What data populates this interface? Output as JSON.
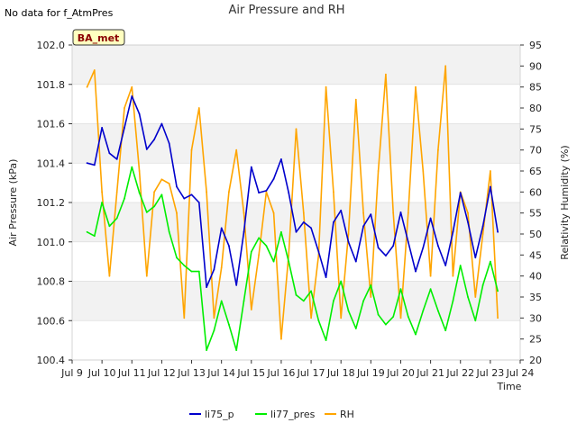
{
  "chart_data": {
    "type": "line",
    "title": "Air Pressure and RH",
    "note": "No data for f_AtmPres",
    "badge": "BA_met",
    "xlabel": "Time",
    "ylabel_left": "Air Pressure (kPa)",
    "ylabel_right": "Relativity Humidity (%)",
    "x_ticks": [
      "Jul 9",
      "Jul 10",
      "Jul 11",
      "Jul 12",
      "Jul 13",
      "Jul 14",
      "Jul 15",
      "Jul 16",
      "Jul 17",
      "Jul 18",
      "Jul 19",
      "Jul 20",
      "Jul 21",
      "Jul 22",
      "Jul 23",
      "Jul 24"
    ],
    "xlim": [
      "Jul 9",
      "Jul 24"
    ],
    "ylim_left": [
      100.4,
      102.0
    ],
    "left_ticks": [
      "100.4",
      "100.6",
      "100.8",
      "101.0",
      "101.2",
      "101.4",
      "101.6",
      "101.8",
      "102.0"
    ],
    "ylim_right": [
      20,
      95
    ],
    "right_ticks": [
      "20",
      "25",
      "30",
      "35",
      "40",
      "45",
      "50",
      "55",
      "60",
      "65",
      "70",
      "75",
      "80",
      "85",
      "90",
      "95"
    ],
    "grid": true,
    "legend_position": "bottom-center",
    "series": [
      {
        "name": "li75_p",
        "axis": "left",
        "color": "#0000cc",
        "x": [
          "Jul 9 12:00",
          "Jul 9 18:00",
          "Jul 10 00:00",
          "Jul 10 06:00",
          "Jul 10 12:00",
          "Jul 10 18:00",
          "Jul 11 00:00",
          "Jul 11 06:00",
          "Jul 11 12:00",
          "Jul 11 18:00",
          "Jul 12 00:00",
          "Jul 12 06:00",
          "Jul 12 12:00",
          "Jul 12 18:00",
          "Jul 13 00:00",
          "Jul 13 06:00",
          "Jul 13 12:00",
          "Jul 13 18:00",
          "Jul 14 00:00",
          "Jul 14 06:00",
          "Jul 14 12:00",
          "Jul 14 18:00",
          "Jul 15 00:00",
          "Jul 15 06:00",
          "Jul 15 12:00",
          "Jul 15 18:00",
          "Jul 16 00:00",
          "Jul 16 06:00",
          "Jul 16 12:00",
          "Jul 16 18:00",
          "Jul 17 00:00",
          "Jul 17 06:00",
          "Jul 17 12:00",
          "Jul 17 18:00",
          "Jul 18 00:00",
          "Jul 18 06:00",
          "Jul 18 12:00",
          "Jul 18 18:00",
          "Jul 19 00:00",
          "Jul 19 06:00",
          "Jul 19 12:00",
          "Jul 19 18:00",
          "Jul 20 00:00",
          "Jul 20 06:00",
          "Jul 20 12:00",
          "Jul 20 18:00",
          "Jul 21 00:00",
          "Jul 21 06:00",
          "Jul 21 12:00",
          "Jul 21 18:00",
          "Jul 22 00:00",
          "Jul 22 06:00",
          "Jul 22 12:00",
          "Jul 22 18:00",
          "Jul 23 00:00",
          "Jul 23 06:00"
        ],
        "values": [
          101.4,
          101.39,
          101.58,
          101.45,
          101.42,
          101.58,
          101.74,
          101.65,
          101.47,
          101.52,
          101.6,
          101.5,
          101.28,
          101.22,
          101.24,
          101.2,
          100.77,
          100.86,
          101.07,
          100.98,
          100.78,
          101.05,
          101.38,
          101.25,
          101.26,
          101.32,
          101.42,
          101.25,
          101.05,
          101.1,
          101.07,
          100.95,
          100.82,
          101.1,
          101.16,
          101.0,
          100.9,
          101.08,
          101.14,
          100.97,
          100.93,
          100.98,
          101.15,
          101.0,
          100.85,
          100.97,
          101.12,
          100.98,
          100.88,
          101.05,
          101.25,
          101.1,
          100.92,
          101.08,
          101.28,
          101.05
        ]
      },
      {
        "name": "li77_pres",
        "axis": "left",
        "color": "#00ee00",
        "x": [
          "Jul 9 12:00",
          "Jul 9 18:00",
          "Jul 10 00:00",
          "Jul 10 06:00",
          "Jul 10 12:00",
          "Jul 10 18:00",
          "Jul 11 00:00",
          "Jul 11 06:00",
          "Jul 11 12:00",
          "Jul 11 18:00",
          "Jul 12 00:00",
          "Jul 12 06:00",
          "Jul 12 12:00",
          "Jul 12 18:00",
          "Jul 13 00:00",
          "Jul 13 06:00",
          "Jul 13 12:00",
          "Jul 13 18:00",
          "Jul 14 00:00",
          "Jul 14 06:00",
          "Jul 14 12:00",
          "Jul 14 18:00",
          "Jul 15 00:00",
          "Jul 15 06:00",
          "Jul 15 12:00",
          "Jul 15 18:00",
          "Jul 16 00:00",
          "Jul 16 06:00",
          "Jul 16 12:00",
          "Jul 16 18:00",
          "Jul 17 00:00",
          "Jul 17 06:00",
          "Jul 17 12:00",
          "Jul 17 18:00",
          "Jul 18 00:00",
          "Jul 18 06:00",
          "Jul 18 12:00",
          "Jul 18 18:00",
          "Jul 19 00:00",
          "Jul 19 06:00",
          "Jul 19 12:00",
          "Jul 19 18:00",
          "Jul 20 00:00",
          "Jul 20 06:00",
          "Jul 20 12:00",
          "Jul 20 18:00",
          "Jul 21 00:00",
          "Jul 21 06:00",
          "Jul 21 12:00",
          "Jul 21 18:00",
          "Jul 22 00:00",
          "Jul 22 06:00",
          "Jul 22 12:00",
          "Jul 22 18:00",
          "Jul 23 00:00",
          "Jul 23 06:00"
        ],
        "values": [
          101.05,
          101.03,
          101.2,
          101.08,
          101.12,
          101.22,
          101.38,
          101.25,
          101.15,
          101.18,
          101.24,
          101.05,
          100.92,
          100.88,
          100.85,
          100.85,
          100.45,
          100.55,
          100.7,
          100.58,
          100.45,
          100.7,
          100.95,
          101.02,
          100.98,
          100.9,
          101.05,
          100.9,
          100.73,
          100.7,
          100.75,
          100.6,
          100.5,
          100.7,
          100.8,
          100.65,
          100.56,
          100.7,
          100.78,
          100.63,
          100.58,
          100.62,
          100.76,
          100.62,
          100.53,
          100.65,
          100.76,
          100.65,
          100.55,
          100.7,
          100.88,
          100.72,
          100.6,
          100.78,
          100.9,
          100.75
        ]
      },
      {
        "name": "RH",
        "axis": "right",
        "color": "#ffa500",
        "x": [
          "Jul 9 12:00",
          "Jul 9 18:00",
          "Jul 10 00:00",
          "Jul 10 06:00",
          "Jul 10 12:00",
          "Jul 10 18:00",
          "Jul 11 00:00",
          "Jul 11 06:00",
          "Jul 11 12:00",
          "Jul 11 18:00",
          "Jul 12 00:00",
          "Jul 12 06:00",
          "Jul 12 12:00",
          "Jul 12 18:00",
          "Jul 13 00:00",
          "Jul 13 06:00",
          "Jul 13 12:00",
          "Jul 13 18:00",
          "Jul 14 00:00",
          "Jul 14 06:00",
          "Jul 14 12:00",
          "Jul 14 18:00",
          "Jul 15 00:00",
          "Jul 15 06:00",
          "Jul 15 12:00",
          "Jul 15 18:00",
          "Jul 16 00:00",
          "Jul 16 06:00",
          "Jul 16 12:00",
          "Jul 16 18:00",
          "Jul 17 00:00",
          "Jul 17 06:00",
          "Jul 17 12:00",
          "Jul 17 18:00",
          "Jul 18 00:00",
          "Jul 18 06:00",
          "Jul 18 12:00",
          "Jul 18 18:00",
          "Jul 19 00:00",
          "Jul 19 06:00",
          "Jul 19 12:00",
          "Jul 19 18:00",
          "Jul 20 00:00",
          "Jul 20 06:00",
          "Jul 20 12:00",
          "Jul 20 18:00",
          "Jul 21 00:00",
          "Jul 21 06:00",
          "Jul 21 12:00",
          "Jul 21 18:00",
          "Jul 22 00:00",
          "Jul 22 06:00",
          "Jul 22 12:00",
          "Jul 22 18:00",
          "Jul 23 00:00",
          "Jul 23 06:00"
        ],
        "values": [
          85,
          89,
          60,
          40,
          60,
          80,
          85,
          65,
          40,
          60,
          63,
          62,
          55,
          30,
          70,
          80,
          60,
          30,
          42,
          60,
          70,
          55,
          32,
          45,
          60,
          55,
          25,
          45,
          75,
          55,
          30,
          45,
          85,
          60,
          30,
          50,
          82,
          55,
          35,
          65,
          88,
          55,
          30,
          55,
          85,
          65,
          40,
          70,
          90,
          40,
          60,
          55,
          35,
          50,
          65,
          30
        ]
      }
    ]
  }
}
